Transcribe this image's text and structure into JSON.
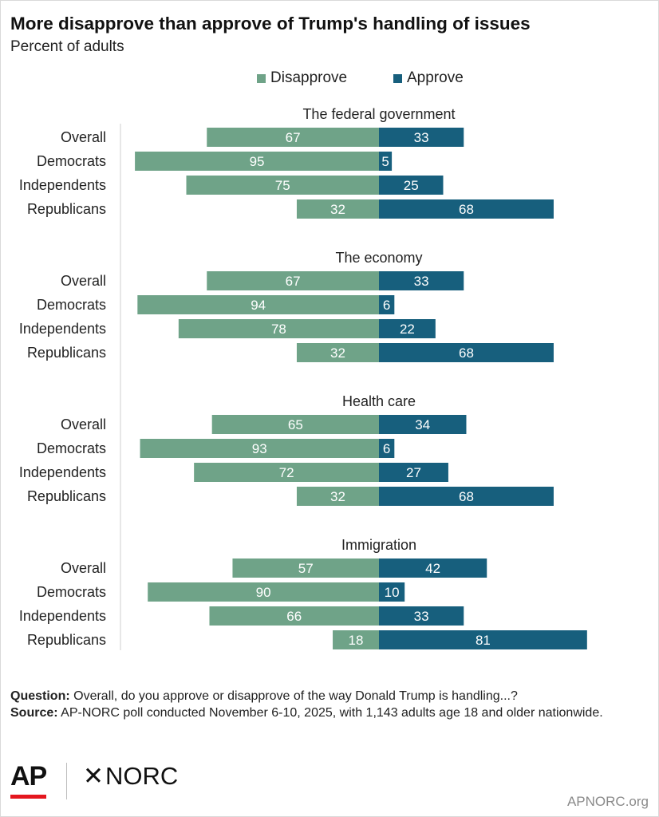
{
  "title": "More disapprove than approve of Trump's handling of issues",
  "subtitle": "Percent of adults",
  "legend": {
    "disapprove": "Disapprove",
    "approve": "Approve"
  },
  "colors": {
    "disapprove": "#6fa388",
    "approve": "#175f7d"
  },
  "chart_data": {
    "type": "bar",
    "orientation": "diverging-horizontal",
    "unit": "Percent of adults",
    "categories": [
      "Overall",
      "Democrats",
      "Independents",
      "Republicans"
    ],
    "series_names": [
      "Disapprove",
      "Approve"
    ],
    "panels": [
      {
        "title": "The federal government",
        "series": [
          {
            "name": "Disapprove",
            "values": [
              67,
              95,
              75,
              32
            ]
          },
          {
            "name": "Approve",
            "values": [
              33,
              5,
              25,
              68
            ]
          }
        ]
      },
      {
        "title": "The economy",
        "series": [
          {
            "name": "Disapprove",
            "values": [
              67,
              94,
              78,
              32
            ]
          },
          {
            "name": "Approve",
            "values": [
              33,
              6,
              22,
              68
            ]
          }
        ]
      },
      {
        "title": "Health care",
        "series": [
          {
            "name": "Disapprove",
            "values": [
              65,
              93,
              72,
              32
            ]
          },
          {
            "name": "Approve",
            "values": [
              34,
              6,
              27,
              68
            ]
          }
        ]
      },
      {
        "title": "Immigration",
        "series": [
          {
            "name": "Disapprove",
            "values": [
              57,
              90,
              66,
              18
            ]
          },
          {
            "name": "Approve",
            "values": [
              42,
              10,
              33,
              81
            ]
          }
        ]
      }
    ]
  },
  "footnote": {
    "question_label": "Question:",
    "question_text": " Overall, do you approve or disapprove of the way Donald Trump is handling...?",
    "source_label": "Source:",
    "source_text": " AP-NORC poll conducted November 6-10, 2025, with 1,143 adults age 18 and older nationwide."
  },
  "branding": {
    "ap_logo": "AP",
    "norc_logo": "NORC",
    "norc_mark": "✕",
    "site_url": "APNORC.org"
  }
}
